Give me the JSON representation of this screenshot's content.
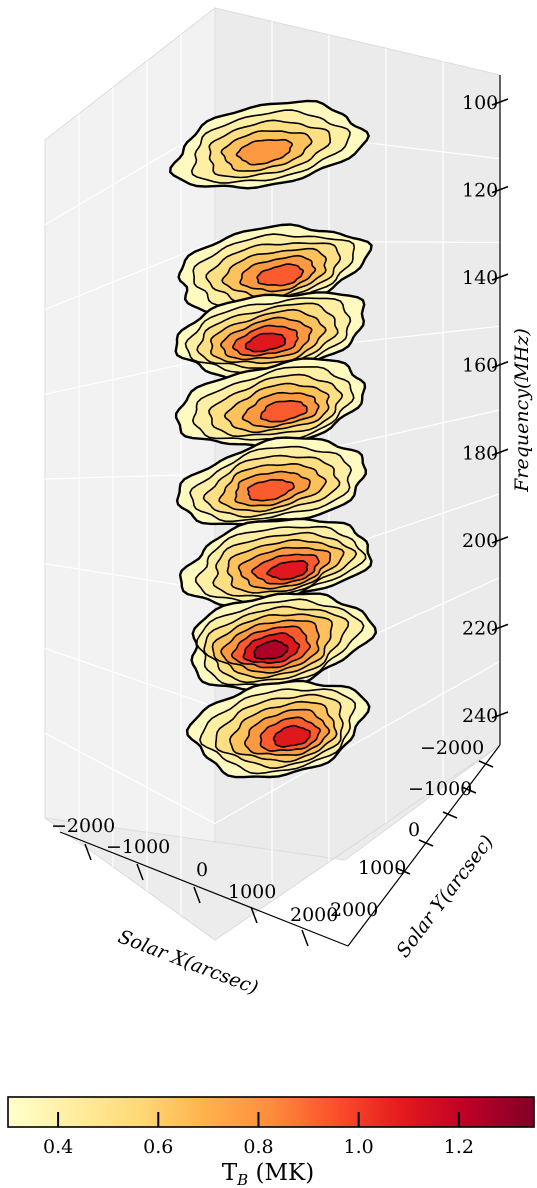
{
  "chart_data": {
    "type": "3d-contour-stack",
    "axes": {
      "x": {
        "label": "Solar X(arcsec)",
        "ticks": [
          "−2000",
          "−1000",
          "0",
          "1000",
          "2000"
        ]
      },
      "y": {
        "label": "Solar Y(arcsec)",
        "ticks": [
          "−2000",
          "−1000",
          "0",
          "1000",
          "2000"
        ]
      },
      "z": {
        "label": "Frequency(MHz)",
        "ticks": [
          "100",
          "120",
          "140",
          "160",
          "180",
          "200",
          "220",
          "240"
        ],
        "range": [
          100,
          245
        ],
        "inverted": true
      }
    },
    "layers": [
      {
        "frequency": 110,
        "peak": 0.78
      },
      {
        "frequency": 138,
        "peak": 0.95
      },
      {
        "frequency": 153,
        "peak": 1.05
      },
      {
        "frequency": 169,
        "peak": 1.0
      },
      {
        "frequency": 187,
        "peak": 1.0
      },
      {
        "frequency": 205,
        "peak": 1.15
      },
      {
        "frequency": 223,
        "peak": 1.25
      },
      {
        "frequency": 243,
        "peak": 1.15
      }
    ],
    "colorbar": {
      "label": "T_B (MK)",
      "label_main": "T",
      "label_sub": "B",
      "label_unit": " (MK)",
      "range": [
        0.3,
        1.35
      ],
      "ticks": [
        "0.4",
        "0.6",
        "0.8",
        "1.0",
        "1.2"
      ],
      "colors": [
        "#ffffcc",
        "#ffeda0",
        "#fed976",
        "#feb24c",
        "#fd8d3c",
        "#fc4e2a",
        "#e31a1c",
        "#bd0026",
        "#800026"
      ]
    },
    "grid": true
  }
}
